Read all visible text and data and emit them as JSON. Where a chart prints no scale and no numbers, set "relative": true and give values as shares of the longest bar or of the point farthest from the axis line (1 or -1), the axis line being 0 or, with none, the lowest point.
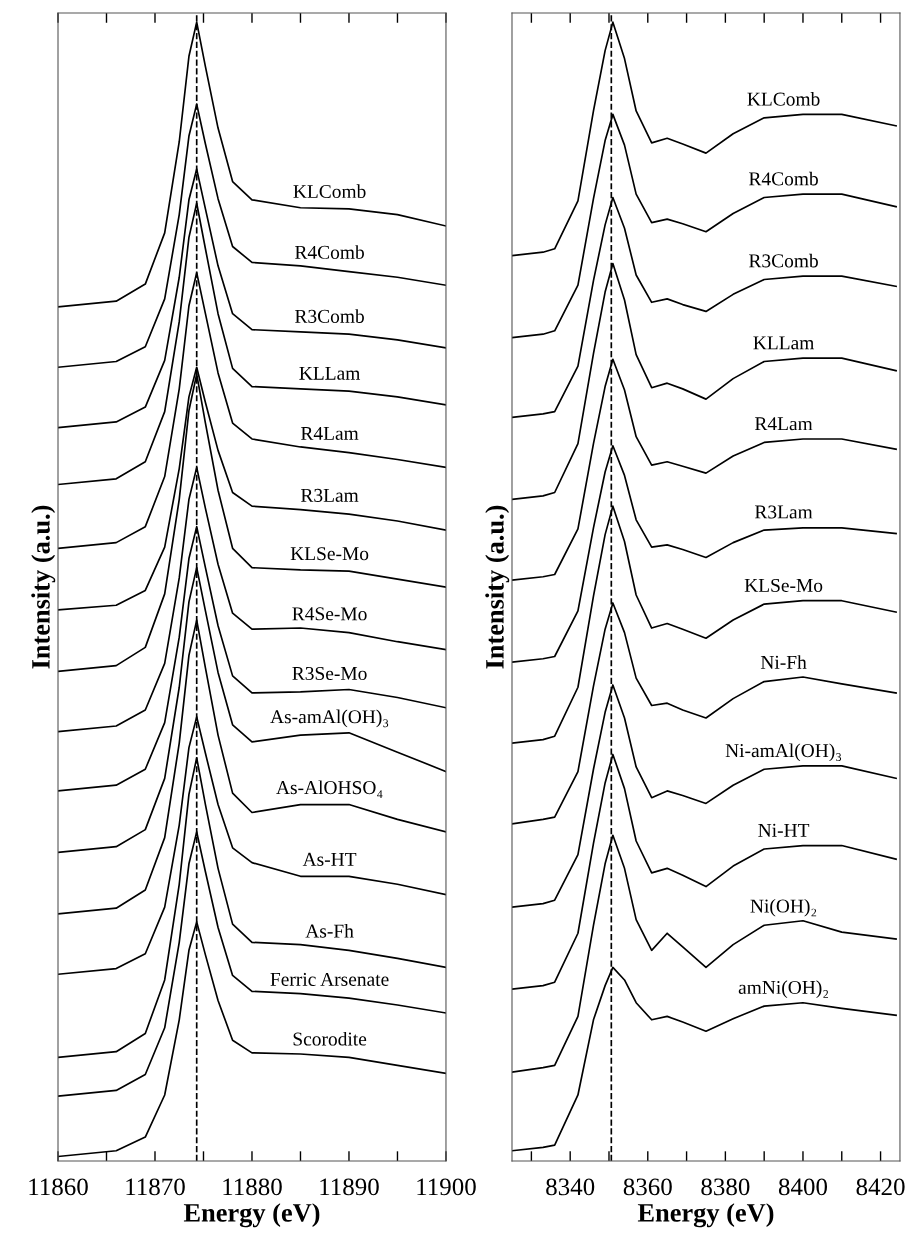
{
  "chart_data": [
    {
      "type": "line",
      "relative": true,
      "xlabel": "Energy (eV)",
      "ylabel": "Intensity (a.u.)",
      "tick_labels": "x",
      "xlim": [
        11860,
        11900
      ],
      "xticks": [
        11860,
        {
          "value": 11865,
          "label": null
        },
        11870,
        {
          "value": 11875,
          "label": null
        },
        11880,
        {
          "value": 11885,
          "label": null
        },
        11890,
        {
          "value": 11895,
          "label": null
        },
        11900
      ],
      "ref_lines": [
        {
          "axis": "x",
          "value": 11874.3,
          "color": "#000000",
          "line_style": "dashed"
        }
      ],
      "x": [
        11860,
        11866,
        11869,
        11871,
        11872.5,
        11873.5,
        11874.3,
        11875.2,
        11876.5,
        11878,
        11880,
        11885,
        11890,
        11895,
        11900
      ],
      "series": [
        {
          "name": "KLComb",
          "color": "#000000",
          "values": [
            0.75,
            0.755,
            0.77,
            0.815,
            0.895,
            0.97,
            1.0,
            0.961,
            0.907,
            0.86,
            0.844,
            0.837,
            0.836,
            0.831,
            0.821
          ]
        },
        {
          "name": "R4Comb",
          "color": "#000000",
          "values": [
            0.697,
            0.702,
            0.715,
            0.757,
            0.831,
            0.9,
            0.928,
            0.893,
            0.845,
            0.803,
            0.789,
            0.786,
            0.781,
            0.776,
            0.769
          ]
        },
        {
          "name": "R3Comb",
          "color": "#000000",
          "values": [
            0.644,
            0.649,
            0.662,
            0.703,
            0.776,
            0.844,
            0.871,
            0.836,
            0.786,
            0.744,
            0.73,
            0.728,
            0.726,
            0.721,
            0.714
          ]
        },
        {
          "name": "KLLam",
          "color": "#000000",
          "values": [
            0.594,
            0.599,
            0.614,
            0.658,
            0.737,
            0.811,
            0.841,
            0.801,
            0.744,
            0.696,
            0.68,
            0.678,
            0.676,
            0.671,
            0.664
          ]
        },
        {
          "name": "R4Lam",
          "color": "#000000",
          "values": [
            0.538,
            0.543,
            0.557,
            0.601,
            0.678,
            0.751,
            0.78,
            0.744,
            0.692,
            0.648,
            0.634,
            0.627,
            0.622,
            0.616,
            0.609
          ]
        },
        {
          "name": "R3Lam",
          "color": "#000000",
          "values": [
            0.484,
            0.488,
            0.501,
            0.539,
            0.608,
            0.671,
            0.697,
            0.666,
            0.624,
            0.587,
            0.575,
            0.572,
            0.568,
            0.562,
            0.554
          ]
        },
        {
          "name": "KLSe-Mo",
          "color": "#000000",
          "values": [
            0.43,
            0.435,
            0.451,
            0.498,
            0.581,
            0.659,
            0.691,
            0.648,
            0.589,
            0.538,
            0.521,
            0.519,
            0.518,
            0.511,
            0.504
          ]
        },
        {
          "name": "R4Se-Mo",
          "color": "#000000",
          "values": [
            0.377,
            0.382,
            0.396,
            0.437,
            0.512,
            0.581,
            0.609,
            0.573,
            0.524,
            0.481,
            0.467,
            0.468,
            0.464,
            0.456,
            0.449
          ]
        },
        {
          "name": "R3Se-Mo",
          "color": "#000000",
          "values": [
            0.325,
            0.33,
            0.344,
            0.385,
            0.46,
            0.529,
            0.557,
            0.521,
            0.47,
            0.426,
            0.411,
            0.412,
            0.414,
            0.407,
            0.398
          ]
        },
        {
          "name": "As-amAl(OH)₃",
          "color": "#000000",
          "values": [
            0.271,
            0.276,
            0.291,
            0.336,
            0.416,
            0.491,
            0.521,
            0.483,
            0.429,
            0.383,
            0.368,
            0.374,
            0.376,
            0.359,
            0.342
          ]
        },
        {
          "name": "As-AlOHSO₄",
          "color": "#000000",
          "values": [
            0.217,
            0.222,
            0.238,
            0.284,
            0.367,
            0.444,
            0.475,
            0.433,
            0.374,
            0.323,
            0.306,
            0.313,
            0.313,
            0.3,
            0.289
          ]
        },
        {
          "name": "As-HT",
          "color": "#000000",
          "values": [
            0.164,
            0.169,
            0.182,
            0.223,
            0.295,
            0.363,
            0.39,
            0.358,
            0.313,
            0.275,
            0.262,
            0.25,
            0.25,
            0.243,
            0.234
          ]
        },
        {
          "name": "As-Fh",
          "color": "#000000",
          "values": [
            0.091,
            0.096,
            0.112,
            0.159,
            0.243,
            0.322,
            0.354,
            0.313,
            0.257,
            0.208,
            0.192,
            0.19,
            0.185,
            0.178,
            0.17
          ]
        },
        {
          "name": "Ferric Arsenate",
          "color": "#000000",
          "values": [
            0.057,
            0.062,
            0.076,
            0.117,
            0.192,
            0.261,
            0.289,
            0.254,
            0.205,
            0.163,
            0.149,
            0.147,
            0.143,
            0.137,
            0.13
          ]
        },
        {
          "name": "Scorodite",
          "color": "#000000",
          "values": [
            0.004,
            0.009,
            0.021,
            0.058,
            0.124,
            0.185,
            0.21,
            0.181,
            0.141,
            0.106,
            0.095,
            0.094,
            0.091,
            0.084,
            0.077
          ]
        }
      ]
    },
    {
      "type": "line",
      "relative": true,
      "xlabel": "Energy (eV)",
      "ylabel": "Intensity (a.u.)",
      "tick_labels": "x",
      "xlim": [
        8325,
        8425
      ],
      "xticks": [
        {
          "value": 8330,
          "label": null
        },
        8340,
        {
          "value": 8350,
          "label": null
        },
        8360,
        {
          "value": 8370,
          "label": null
        },
        8380,
        {
          "value": 8390,
          "label": null
        },
        8400,
        {
          "value": 8410,
          "label": null
        },
        8420
      ],
      "ref_lines": [
        {
          "axis": "x",
          "value": 8350.6,
          "color": "#000000",
          "line_style": "dashed"
        }
      ],
      "x": [
        8325,
        8333,
        8336,
        8342,
        8346,
        8349,
        8351,
        8354,
        8357,
        8361,
        8365,
        8369,
        8375,
        8382,
        8390,
        8400,
        8410,
        8424
      ],
      "series": [
        {
          "name": "KLComb",
          "color": "#000000",
          "values": [
            0.795,
            0.798,
            0.801,
            0.843,
            0.922,
            0.975,
            1.0,
            0.968,
            0.922,
            0.894,
            0.898,
            0.893,
            0.885,
            0.902,
            0.916,
            0.919,
            0.919,
            0.909
          ]
        },
        {
          "name": "R4Comb",
          "color": "#000000",
          "values": [
            0.723,
            0.726,
            0.729,
            0.769,
            0.845,
            0.896,
            0.919,
            0.892,
            0.849,
            0.824,
            0.827,
            0.823,
            0.816,
            0.832,
            0.846,
            0.849,
            0.849,
            0.838
          ]
        },
        {
          "name": "R3Comb",
          "color": "#000000",
          "values": [
            0.653,
            0.656,
            0.658,
            0.698,
            0.773,
            0.822,
            0.846,
            0.819,
            0.778,
            0.754,
            0.757,
            0.752,
            0.746,
            0.761,
            0.774,
            0.777,
            0.777,
            0.768
          ]
        },
        {
          "name": "KLLam",
          "color": "#000000",
          "values": [
            0.581,
            0.584,
            0.587,
            0.63,
            0.709,
            0.763,
            0.788,
            0.756,
            0.708,
            0.679,
            0.683,
            0.678,
            0.669,
            0.687,
            0.702,
            0.705,
            0.705,
            0.694
          ]
        },
        {
          "name": "R4Lam",
          "color": "#000000",
          "values": [
            0.51,
            0.513,
            0.515,
            0.555,
            0.63,
            0.68,
            0.704,
            0.677,
            0.636,
            0.611,
            0.614,
            0.61,
            0.604,
            0.619,
            0.631,
            0.634,
            0.634,
            0.625
          ]
        },
        {
          "name": "R3Lam",
          "color": "#000000",
          "values": [
            0.438,
            0.441,
            0.443,
            0.483,
            0.556,
            0.605,
            0.628,
            0.602,
            0.563,
            0.539,
            0.541,
            0.537,
            0.53,
            0.543,
            0.554,
            0.556,
            0.556,
            0.551
          ]
        },
        {
          "name": "KLSe-Mo",
          "color": "#000000",
          "values": [
            0.367,
            0.37,
            0.373,
            0.416,
            0.496,
            0.55,
            0.575,
            0.544,
            0.497,
            0.468,
            0.472,
            0.467,
            0.459,
            0.475,
            0.489,
            0.492,
            0.492,
            0.482
          ]
        },
        {
          "name": "Ni-Fh",
          "color": "#000000",
          "values": [
            0.296,
            0.3,
            0.302,
            0.342,
            0.417,
            0.467,
            0.49,
            0.464,
            0.424,
            0.4,
            0.402,
            0.396,
            0.389,
            0.406,
            0.421,
            0.425,
            0.419,
            0.411
          ]
        },
        {
          "name": "Ni-amAl(OH)₃",
          "color": "#000000",
          "values": [
            0.223,
            0.226,
            0.229,
            0.269,
            0.344,
            0.394,
            0.418,
            0.389,
            0.346,
            0.319,
            0.325,
            0.321,
            0.314,
            0.33,
            0.344,
            0.347,
            0.347,
            0.336
          ]
        },
        {
          "name": "Ni-HT",
          "color": "#000000",
          "values": [
            0.151,
            0.154,
            0.157,
            0.2,
            0.279,
            0.332,
            0.357,
            0.327,
            0.281,
            0.253,
            0.257,
            0.251,
            0.241,
            0.259,
            0.274,
            0.277,
            0.277,
            0.265
          ]
        },
        {
          "name": "Ni(OH)₂",
          "color": "#000000",
          "values": [
            0.078,
            0.082,
            0.084,
            0.127,
            0.207,
            0.261,
            0.286,
            0.257,
            0.212,
            0.185,
            0.2,
            0.188,
            0.17,
            0.19,
            0.207,
            0.211,
            0.201,
            0.195
          ]
        },
        {
          "name": "amNi(OH)₂",
          "color": "#000000",
          "values": [
            0.009,
            0.012,
            0.014,
            0.058,
            0.124,
            0.154,
            0.17,
            0.159,
            0.139,
            0.124,
            0.127,
            0.122,
            0.114,
            0.125,
            0.136,
            0.139,
            0.134,
            0.128
          ]
        }
      ]
    }
  ]
}
